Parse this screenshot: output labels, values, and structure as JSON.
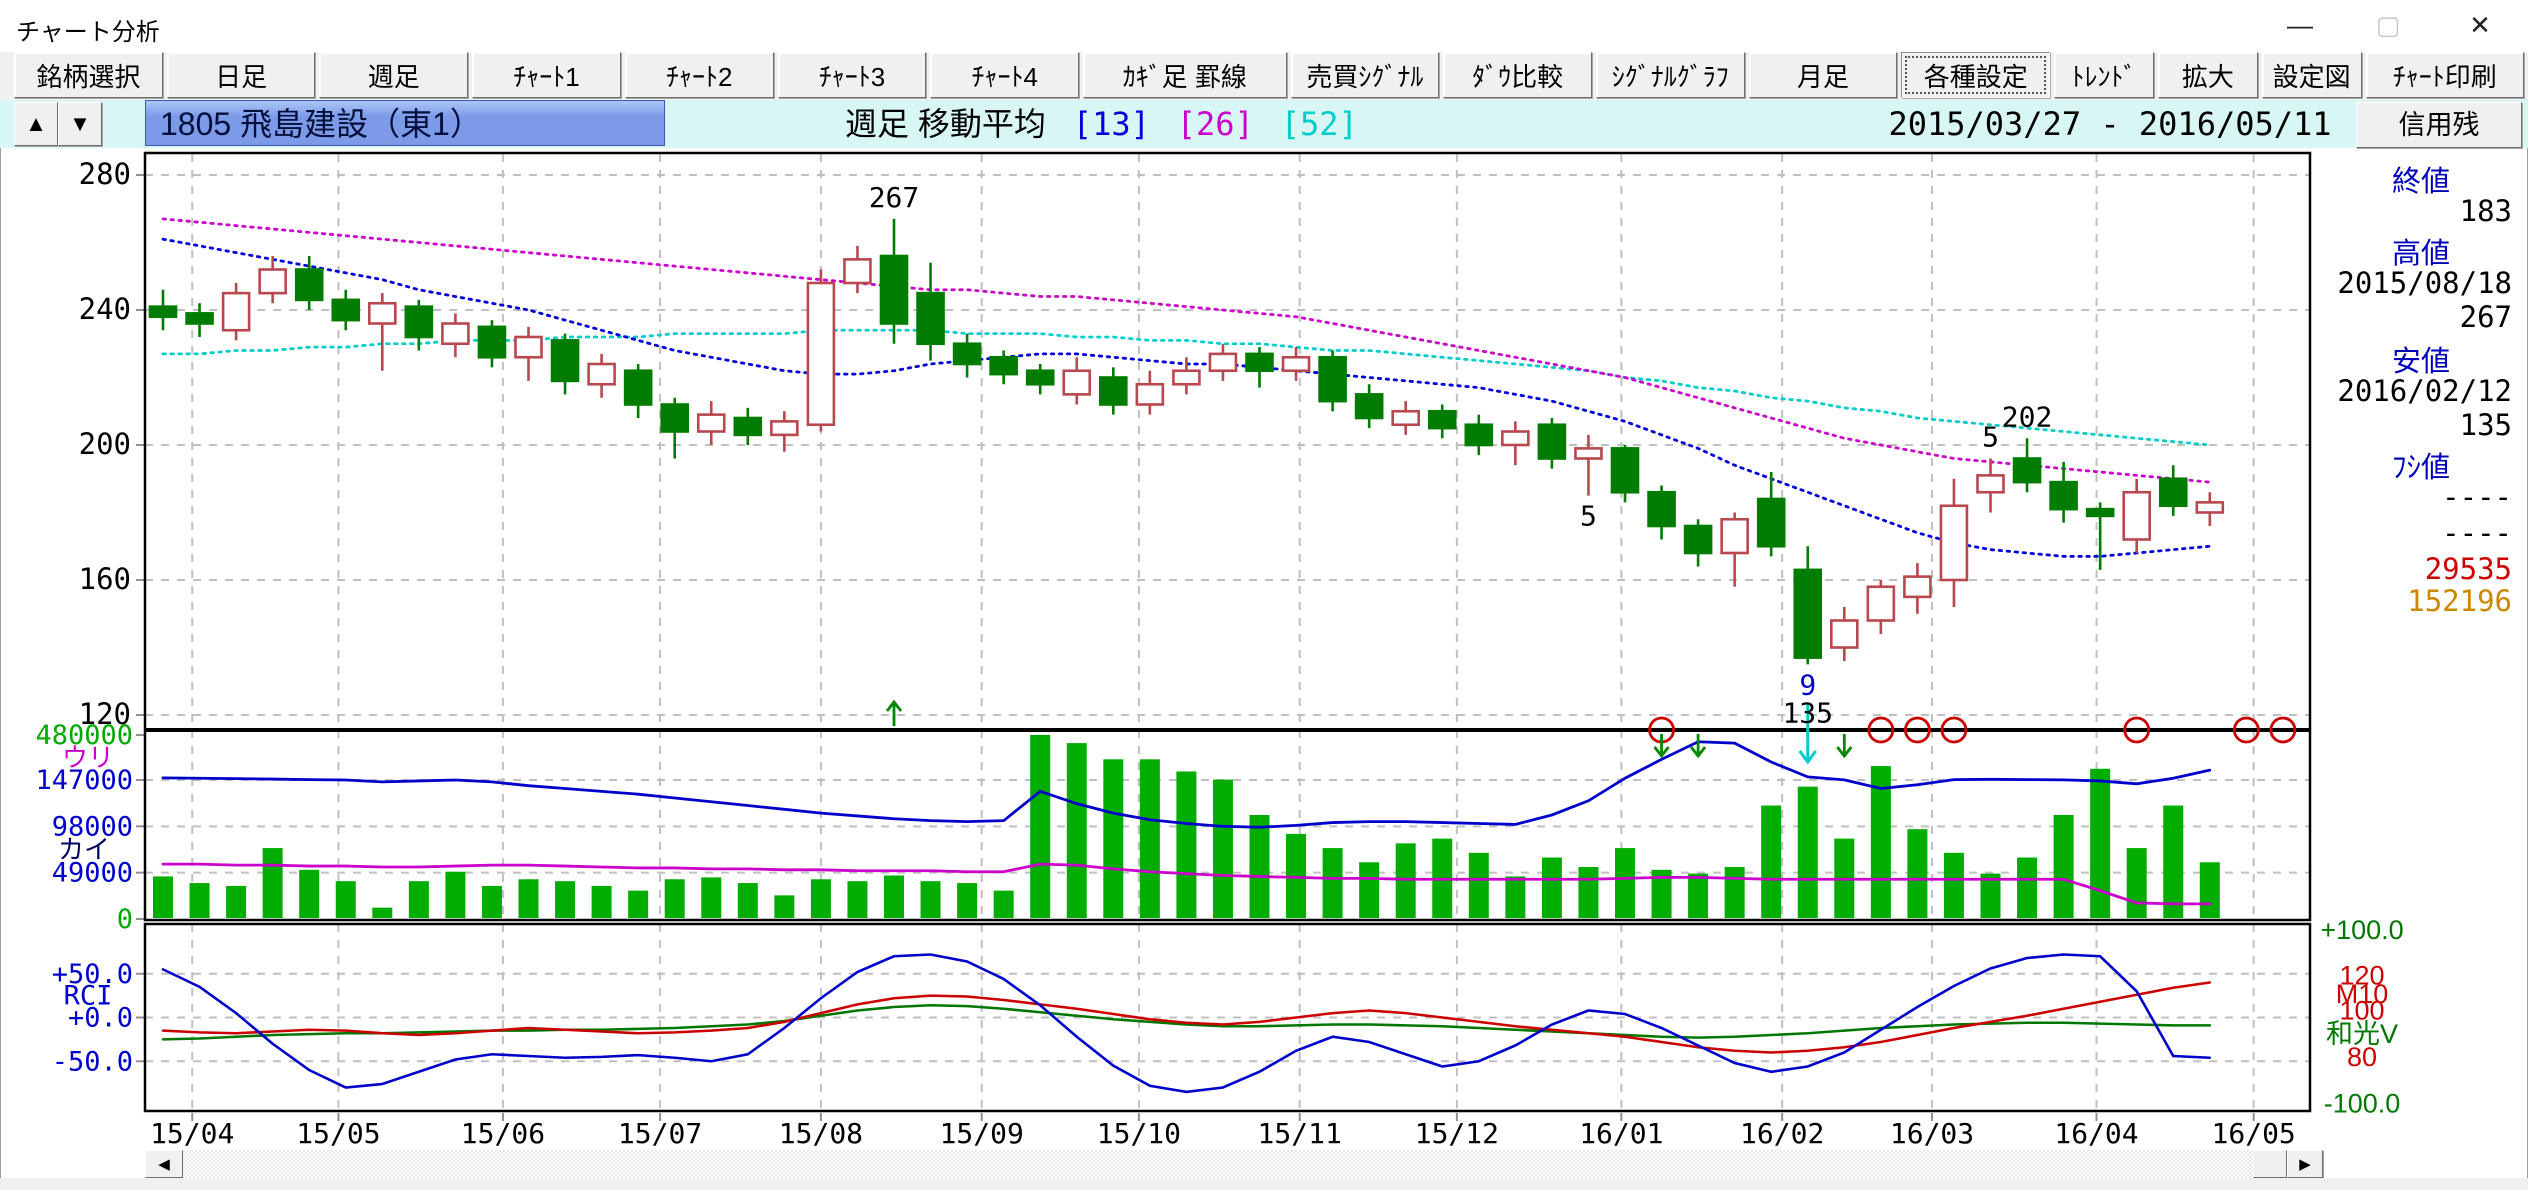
{
  "window": {
    "title": "チャート分析",
    "minimize": "—",
    "maximize": "▢",
    "close": "✕"
  },
  "toolbar": {
    "buttons": [
      {
        "label": "銘柄選択"
      },
      {
        "label": "日足"
      },
      {
        "label": "週足"
      },
      {
        "label": "ﾁｬｰﾄ1"
      },
      {
        "label": "ﾁｬｰﾄ2"
      },
      {
        "label": "ﾁｬｰﾄ3"
      },
      {
        "label": "ﾁｬｰﾄ4"
      },
      {
        "label": "ｶｷﾞ足 罫線"
      },
      {
        "label": "売買ｼｸﾞﾅﾙ"
      },
      {
        "label": "ﾀﾞｳ比較"
      },
      {
        "label": "ｼｸﾞﾅﾙｸﾞﾗﾌ"
      },
      {
        "label": "月足"
      },
      {
        "label": "各種設定",
        "active": true
      },
      {
        "label": "ﾄﾚﾝﾄﾞ"
      },
      {
        "label": "拡大"
      },
      {
        "label": "設定図"
      },
      {
        "label": "ﾁｬｰﾄ印刷"
      }
    ]
  },
  "infobar": {
    "up_arrow": "▲",
    "down_arrow": "▼",
    "stock": "1805 飛島建設（東1）",
    "period_label": "週足 移動平均",
    "ma_tags": [
      {
        "label": "[13]",
        "color": "#0000dd"
      },
      {
        "label": "[26]",
        "color": "#cc00cc"
      },
      {
        "label": "[52]",
        "color": "#00cccc"
      }
    ],
    "date_range": "2015/03/27 - 2016/05/11",
    "credit_button": "信用残"
  },
  "right_panel": {
    "close_label": "終値",
    "close_value": "183",
    "high_label": "高値",
    "high_date": "2015/08/18",
    "high_value": "267",
    "low_label": "安値",
    "low_date": "2016/02/12",
    "low_value": "135",
    "fushi_label": "ﾌｼ値",
    "fushi_value1": "----",
    "fushi_value2": "----",
    "credit_sell": "29535",
    "credit_buy": "152196",
    "credit_sell_color": "#cc0000",
    "credit_buy_color": "#cc8800"
  },
  "scrollbar": {
    "left_arrow": "◀",
    "right_arrow": "▶"
  },
  "chart_data": {
    "type": "candlestick+volume+oscillator",
    "title": "1805 飛島建設（東1） 週足 移動平均[13][26][52]",
    "price_axis": {
      "ticks": [
        280,
        240,
        200,
        160,
        120
      ],
      "range": [
        118,
        282
      ]
    },
    "volume_axis": {
      "ticks": [
        {
          "text": "480000",
          "v": 480,
          "color": "#00aa00"
        },
        {
          "text": "147000",
          "v": 147,
          "color": "#0000cc"
        },
        {
          "text": "98000",
          "v": 98,
          "color": "#0000cc"
        },
        {
          "text": "49000",
          "v": 49,
          "color": "#0000cc"
        },
        {
          "text": "0",
          "v": 0,
          "color": "#00aa00"
        }
      ],
      "sell_label": {
        "text": "ウリ",
        "color": "#cc00cc"
      },
      "buy_label": {
        "text": "カイ",
        "color": "#000060"
      }
    },
    "oscillator_axis": {
      "left_ticks": [
        {
          "text": "+50.0",
          "v": 50
        },
        {
          "text": "+0.0",
          "v": 0
        },
        {
          "text": "-50.0",
          "v": -50
        }
      ],
      "left_name": {
        "text": "RCI",
        "color": "#0000cc"
      },
      "right_labels": [
        {
          "text": "+100.0",
          "v": 100,
          "color": "#007700"
        },
        {
          "text": "120",
          "v": 48,
          "color": "#cc0000"
        },
        {
          "text": "M10",
          "v": 27,
          "color": "#cc0000"
        },
        {
          "text": "100",
          "v": 8,
          "color": "#cc0000"
        },
        {
          "text": "和光V",
          "v": -19,
          "color": "#007700"
        },
        {
          "text": "80",
          "v": -45,
          "color": "#cc0000"
        },
        {
          "text": "-100.0",
          "v": -98,
          "color": "#007700"
        }
      ]
    },
    "months": [
      {
        "label": "15/04",
        "week": 0.8
      },
      {
        "label": "15/05",
        "week": 4.8
      },
      {
        "label": "15/06",
        "week": 9.3
      },
      {
        "label": "15/07",
        "week": 13.6
      },
      {
        "label": "15/08",
        "week": 18.0
      },
      {
        "label": "15/09",
        "week": 22.4
      },
      {
        "label": "15/10",
        "week": 26.7
      },
      {
        "label": "15/11",
        "week": 31.1
      },
      {
        "label": "15/12",
        "week": 35.4
      },
      {
        "label": "16/01",
        "week": 39.9
      },
      {
        "label": "16/02",
        "week": 44.3
      },
      {
        "label": "16/03",
        "week": 48.4
      },
      {
        "label": "16/04",
        "week": 52.9
      },
      {
        "label": "16/05",
        "week": 57.2
      }
    ],
    "candles_ohlc": [
      [
        241,
        246,
        234,
        238
      ],
      [
        239,
        242,
        232,
        236
      ],
      [
        234,
        248,
        231,
        245
      ],
      [
        245,
        256,
        242,
        252
      ],
      [
        252,
        256,
        240,
        243
      ],
      [
        243,
        246,
        234,
        237
      ],
      [
        236,
        245,
        222,
        242
      ],
      [
        241,
        243,
        228,
        232
      ],
      [
        230,
        239,
        226,
        236
      ],
      [
        235,
        237,
        223,
        226
      ],
      [
        226,
        235,
        219,
        232
      ],
      [
        231,
        233,
        215,
        219
      ],
      [
        218,
        227,
        214,
        224
      ],
      [
        222,
        224,
        208,
        212
      ],
      [
        212,
        214,
        196,
        204
      ],
      [
        204,
        213,
        200,
        209
      ],
      [
        208,
        211,
        200,
        203
      ],
      [
        203,
        210,
        198,
        207
      ],
      [
        206,
        252,
        204,
        248
      ],
      [
        248,
        259,
        245,
        255
      ],
      [
        256,
        267,
        230,
        236
      ],
      [
        245,
        254,
        225,
        230
      ],
      [
        230,
        233,
        220,
        224
      ],
      [
        226,
        228,
        218,
        221
      ],
      [
        222,
        224,
        215,
        218
      ],
      [
        215,
        226,
        212,
        222
      ],
      [
        220,
        223,
        209,
        212
      ],
      [
        212,
        222,
        209,
        218
      ],
      [
        218,
        226,
        215,
        222
      ],
      [
        222,
        230,
        219,
        227
      ],
      [
        227,
        229,
        217,
        222
      ],
      [
        222,
        229,
        219,
        226
      ],
      [
        226,
        228,
        210,
        213
      ],
      [
        215,
        218,
        205,
        208
      ],
      [
        206,
        213,
        203,
        210
      ],
      [
        210,
        212,
        202,
        205
      ],
      [
        206,
        209,
        197,
        200
      ],
      [
        200,
        207,
        194,
        204
      ],
      [
        206,
        208,
        193,
        196
      ],
      [
        196,
        203,
        185,
        199
      ],
      [
        199,
        200,
        183,
        186
      ],
      [
        186,
        188,
        172,
        176
      ],
      [
        176,
        178,
        164,
        168
      ],
      [
        168,
        180,
        158,
        178
      ],
      [
        184,
        192,
        167,
        170
      ],
      [
        163,
        170,
        135,
        137
      ],
      [
        140,
        152,
        136,
        148
      ],
      [
        148,
        160,
        144,
        158
      ],
      [
        155,
        165,
        150,
        161
      ],
      [
        160,
        190,
        152,
        182
      ],
      [
        186,
        196,
        180,
        191
      ],
      [
        196,
        202,
        186,
        189
      ],
      [
        189,
        195,
        177,
        181
      ],
      [
        181,
        183,
        163,
        179
      ],
      [
        172,
        190,
        168,
        186
      ],
      [
        190,
        194,
        179,
        182
      ],
      [
        180,
        186,
        176,
        183
      ]
    ],
    "ma13": [
      261,
      259,
      257,
      255,
      253,
      251,
      249,
      246,
      244,
      242,
      240,
      237,
      234,
      231,
      228,
      226,
      224,
      222,
      221,
      221,
      222,
      224,
      225,
      226,
      227,
      227,
      226,
      225,
      224,
      224,
      223,
      222,
      221,
      220,
      219,
      218,
      217,
      215,
      213,
      210,
      207,
      203,
      199,
      194,
      190,
      186,
      182,
      178,
      174,
      171,
      169,
      168,
      167,
      167,
      168,
      169,
      170
    ],
    "ma26": [
      267,
      266,
      265,
      264,
      263,
      262,
      261,
      260,
      259,
      258,
      257,
      256,
      255,
      254,
      253,
      252,
      251,
      250,
      249,
      248,
      247,
      246,
      246,
      245,
      244,
      244,
      243,
      242,
      241,
      240,
      239,
      238,
      236,
      234,
      232,
      230,
      228,
      226,
      224,
      222,
      220,
      217,
      214,
      211,
      208,
      205,
      202,
      200,
      198,
      196,
      195,
      194,
      193,
      192,
      191,
      190,
      189
    ],
    "ma52": [
      227,
      227,
      228,
      228,
      229,
      229,
      230,
      230,
      231,
      231,
      231,
      232,
      232,
      232,
      233,
      233,
      233,
      233,
      234,
      234,
      234,
      234,
      233,
      233,
      233,
      232,
      232,
      231,
      231,
      230,
      230,
      229,
      228,
      228,
      227,
      226,
      225,
      224,
      223,
      222,
      220,
      219,
      217,
      216,
      214,
      213,
      211,
      210,
      208,
      207,
      206,
      205,
      204,
      203,
      202,
      201,
      200
    ],
    "volumes_k": [
      45,
      38,
      35,
      75,
      52,
      40,
      12,
      40,
      50,
      35,
      42,
      40,
      35,
      30,
      42,
      44,
      38,
      25,
      42,
      40,
      46,
      40,
      38,
      30,
      480,
      420,
      300,
      300,
      210,
      150,
      110,
      90,
      75,
      60,
      80,
      85,
      70,
      45,
      65,
      55,
      75,
      52,
      48,
      55,
      120,
      140,
      85,
      250,
      95,
      70,
      48,
      65,
      110,
      230,
      75,
      120,
      60
    ],
    "vol_line_blue_k": [
      163,
      160,
      157,
      154,
      150,
      147,
      145,
      146,
      147,
      145,
      141,
      138,
      135,
      132,
      128,
      124,
      120,
      116,
      112,
      109,
      106,
      104,
      103,
      104,
      135,
      122,
      112,
      105,
      101,
      98,
      97,
      99,
      102,
      103,
      103,
      102,
      101,
      100,
      110,
      125,
      160,
      300,
      430,
      420,
      280,
      170,
      148,
      138,
      142,
      150,
      152,
      150,
      148,
      146,
      143,
      160,
      220
    ],
    "vol_line_magenta_k": [
      58,
      58,
      57,
      57,
      56,
      56,
      55,
      55,
      56,
      57,
      57,
      56,
      55,
      54,
      54,
      53,
      53,
      52,
      52,
      51,
      51,
      51,
      50,
      50,
      58,
      57,
      53,
      50,
      48,
      46,
      45,
      44,
      43,
      43,
      42,
      42,
      42,
      42,
      42,
      42,
      43,
      44,
      44,
      43,
      42,
      42,
      42,
      42,
      42,
      42,
      42,
      42,
      42,
      30,
      17,
      16,
      16
    ],
    "rci_blue": [
      55,
      35,
      5,
      -30,
      -60,
      -80,
      -76,
      -62,
      -48,
      -42,
      -44,
      -46,
      -45,
      -43,
      -46,
      -50,
      -42,
      -12,
      22,
      52,
      70,
      72,
      64,
      44,
      14,
      -22,
      -55,
      -78,
      -85,
      -80,
      -62,
      -38,
      -22,
      -28,
      -42,
      -56,
      -50,
      -32,
      -8,
      8,
      4,
      -12,
      -32,
      -52,
      -62,
      -56,
      -40,
      -14,
      12,
      36,
      56,
      68,
      72,
      70,
      30,
      -44,
      -46
    ],
    "rci_red": [
      -15,
      -17,
      -18,
      -16,
      -14,
      -15,
      -18,
      -20,
      -18,
      -15,
      -12,
      -14,
      -16,
      -18,
      -17,
      -15,
      -12,
      -5,
      5,
      15,
      22,
      25,
      24,
      20,
      15,
      10,
      4,
      -2,
      -6,
      -8,
      -5,
      0,
      5,
      8,
      5,
      0,
      -5,
      -10,
      -14,
      -18,
      -22,
      -28,
      -34,
      -38,
      -40,
      -38,
      -34,
      -28,
      -20,
      -12,
      -5,
      2,
      10,
      18,
      26,
      34,
      40
    ],
    "rci_green": [
      -25,
      -24,
      -22,
      -20,
      -19,
      -18,
      -18,
      -17,
      -16,
      -15,
      -15,
      -14,
      -14,
      -13,
      -12,
      -10,
      -8,
      -4,
      2,
      8,
      12,
      14,
      13,
      10,
      6,
      2,
      -2,
      -5,
      -8,
      -10,
      -10,
      -9,
      -8,
      -8,
      -9,
      -10,
      -12,
      -14,
      -16,
      -18,
      -20,
      -22,
      -23,
      -22,
      -20,
      -18,
      -15,
      -12,
      -10,
      -8,
      -7,
      -6,
      -6,
      -7,
      -8,
      -9,
      -9
    ],
    "annotations": [
      {
        "text": "267",
        "idx": 20,
        "pos": "above",
        "color": "#000000"
      },
      {
        "text": "5",
        "idx": 39,
        "pos": "below",
        "color": "#000000"
      },
      {
        "text": "9",
        "idx": 45,
        "pos": "below",
        "color": "#0000cc"
      },
      {
        "text": "135",
        "idx": 45,
        "pos": "below2",
        "color": "#000000"
      },
      {
        "text": "5",
        "idx": 50,
        "pos": "above",
        "color": "#000000"
      },
      {
        "text": "202",
        "idx": 51,
        "pos": "above",
        "color": "#000000"
      }
    ],
    "signals": {
      "up_arrow_slots": [
        20
      ],
      "down_arrow_slots": [
        41,
        42,
        46
      ],
      "cyan_arrow_slots": [
        45
      ],
      "circle_slots": [
        41,
        47,
        48,
        49,
        54,
        57,
        58
      ]
    },
    "colors": {
      "candle_up": "#b8484e",
      "candle_down": "#007d00",
      "volume_bar": "#00ad00",
      "ma13": "#0000dd",
      "ma26": "#cc00cc",
      "ma52": "#00cccc",
      "vol_blue": "#0000cc",
      "vol_magenta": "#cc00cc",
      "rci_blue": "#0000cc",
      "rci_red": "#cc0000",
      "rci_green": "#007700",
      "grid": "#c0c0c0",
      "signal_circle": "#cc0000",
      "signal_green": "#008800",
      "signal_cyan": "#00cccc"
    }
  }
}
